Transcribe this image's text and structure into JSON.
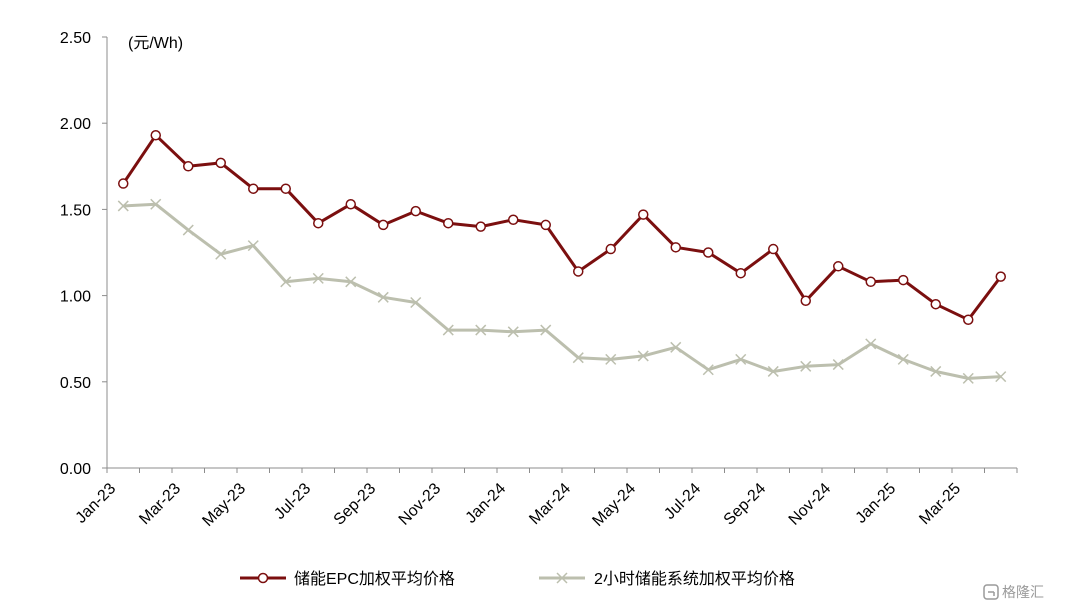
{
  "chart_data": {
    "type": "line",
    "unit_label": "(元/Wh)",
    "x": [
      "Jan-23",
      "Feb-23",
      "Mar-23",
      "Apr-23",
      "May-23",
      "Jun-23",
      "Jul-23",
      "Aug-23",
      "Sep-23",
      "Oct-23",
      "Nov-23",
      "Dec-23",
      "Jan-24",
      "Feb-24",
      "Mar-24",
      "Apr-24",
      "May-24",
      "Jun-24",
      "Jul-24",
      "Aug-24",
      "Sep-24",
      "Oct-24",
      "Nov-24",
      "Dec-24",
      "Jan-25",
      "Feb-25",
      "Mar-25",
      "Apr-25"
    ],
    "x_tick_labels": [
      "Jan-23",
      "Mar-23",
      "May-23",
      "Jul-23",
      "Sep-23",
      "Nov-23",
      "Jan-24",
      "Mar-24",
      "May-24",
      "Jul-24",
      "Sep-24",
      "Nov-24",
      "Jan-25",
      "Mar-25"
    ],
    "y_tick_labels": [
      "0.00",
      "0.50",
      "1.00",
      "1.50",
      "2.00",
      "2.50"
    ],
    "ylim": [
      0,
      2.5
    ],
    "grid": false,
    "legend_position": "bottom",
    "series": [
      {
        "name": "储能EPC加权平均价格",
        "color": "#7b0f0f",
        "marker": "circle",
        "values": [
          1.65,
          1.93,
          1.75,
          1.77,
          1.62,
          1.62,
          1.42,
          1.53,
          1.41,
          1.49,
          1.42,
          1.4,
          1.44,
          1.41,
          1.14,
          1.27,
          1.47,
          1.28,
          1.25,
          1.13,
          1.27,
          0.97,
          1.17,
          1.08,
          1.09,
          0.95,
          0.86,
          1.11
        ]
      },
      {
        "name": "2小时储能系统加权平均价格",
        "color": "#bcbfae",
        "marker": "x",
        "values": [
          1.52,
          1.53,
          1.38,
          1.24,
          1.29,
          1.08,
          1.1,
          1.08,
          0.99,
          0.96,
          0.8,
          0.8,
          0.79,
          0.8,
          0.64,
          0.63,
          0.65,
          0.7,
          0.57,
          0.63,
          0.56,
          0.59,
          0.6,
          0.72,
          0.63,
          0.56,
          0.52,
          0.53
        ]
      }
    ]
  },
  "watermark": {
    "text": "格隆汇"
  }
}
